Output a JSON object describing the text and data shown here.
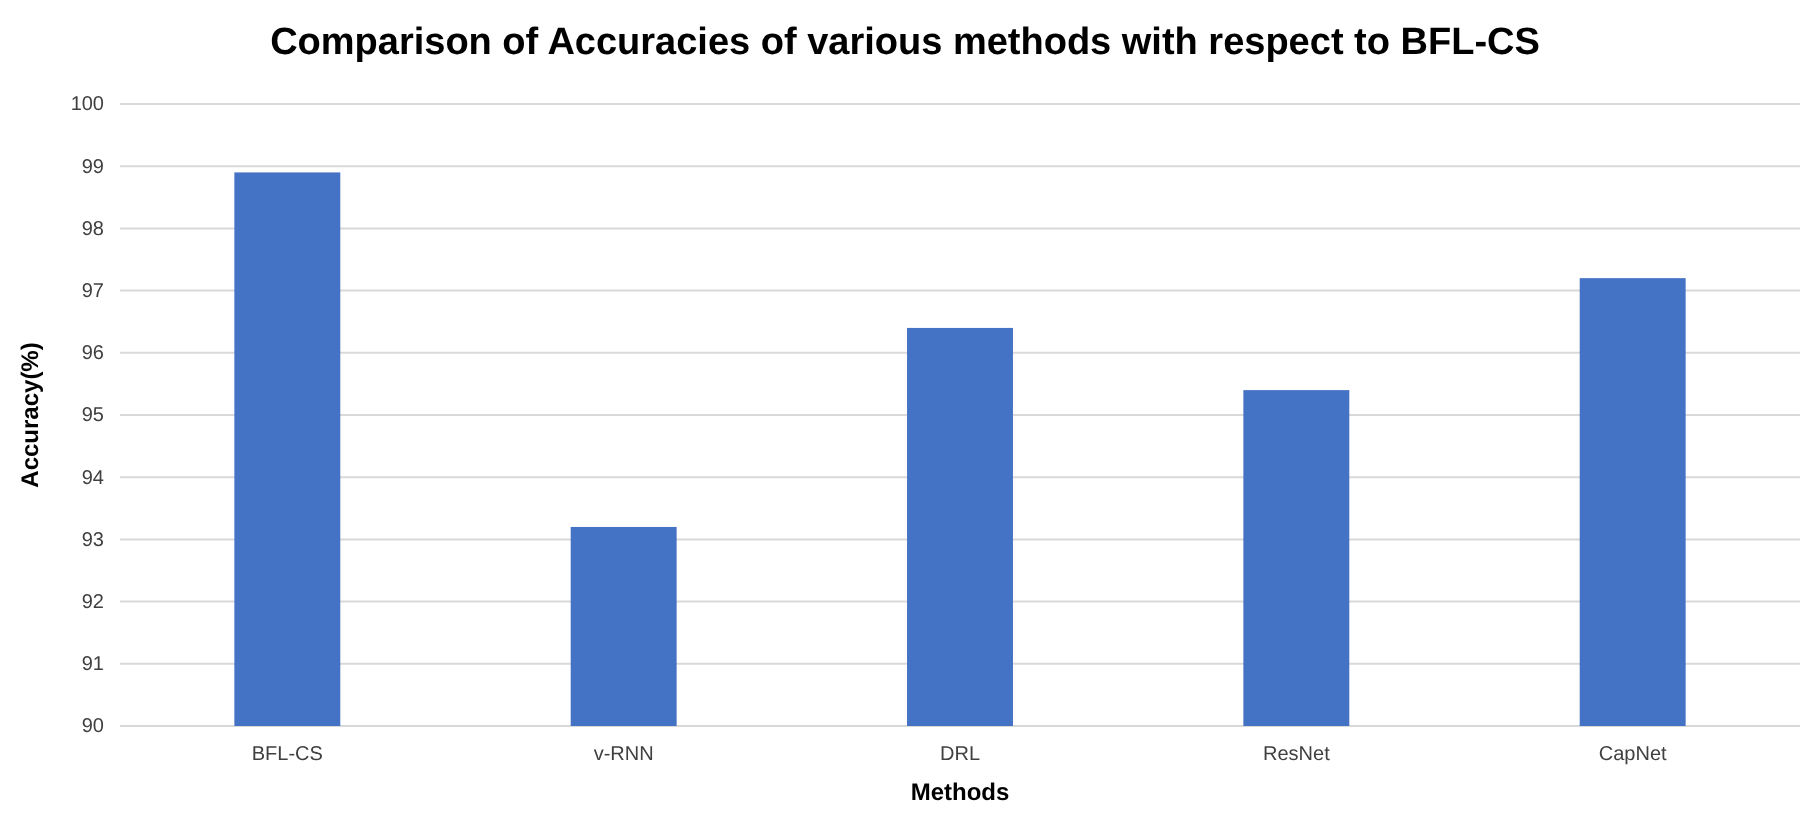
{
  "chart_data": {
    "type": "bar",
    "title": "Comparison of Accuracies of various methods with respect to BFL-CS",
    "xlabel": "Methods",
    "ylabel": "Accuracy(%)",
    "categories": [
      "BFL-CS",
      "v-RNN",
      "DRL",
      "ResNet",
      "CapNet"
    ],
    "values": [
      98.9,
      93.2,
      96.4,
      95.4,
      97.2
    ],
    "color": "#4472c4",
    "ylim": [
      90,
      100
    ],
    "yticks": [
      90,
      91,
      92,
      93,
      94,
      95,
      96,
      97,
      98,
      99,
      100
    ],
    "grid": "y"
  }
}
